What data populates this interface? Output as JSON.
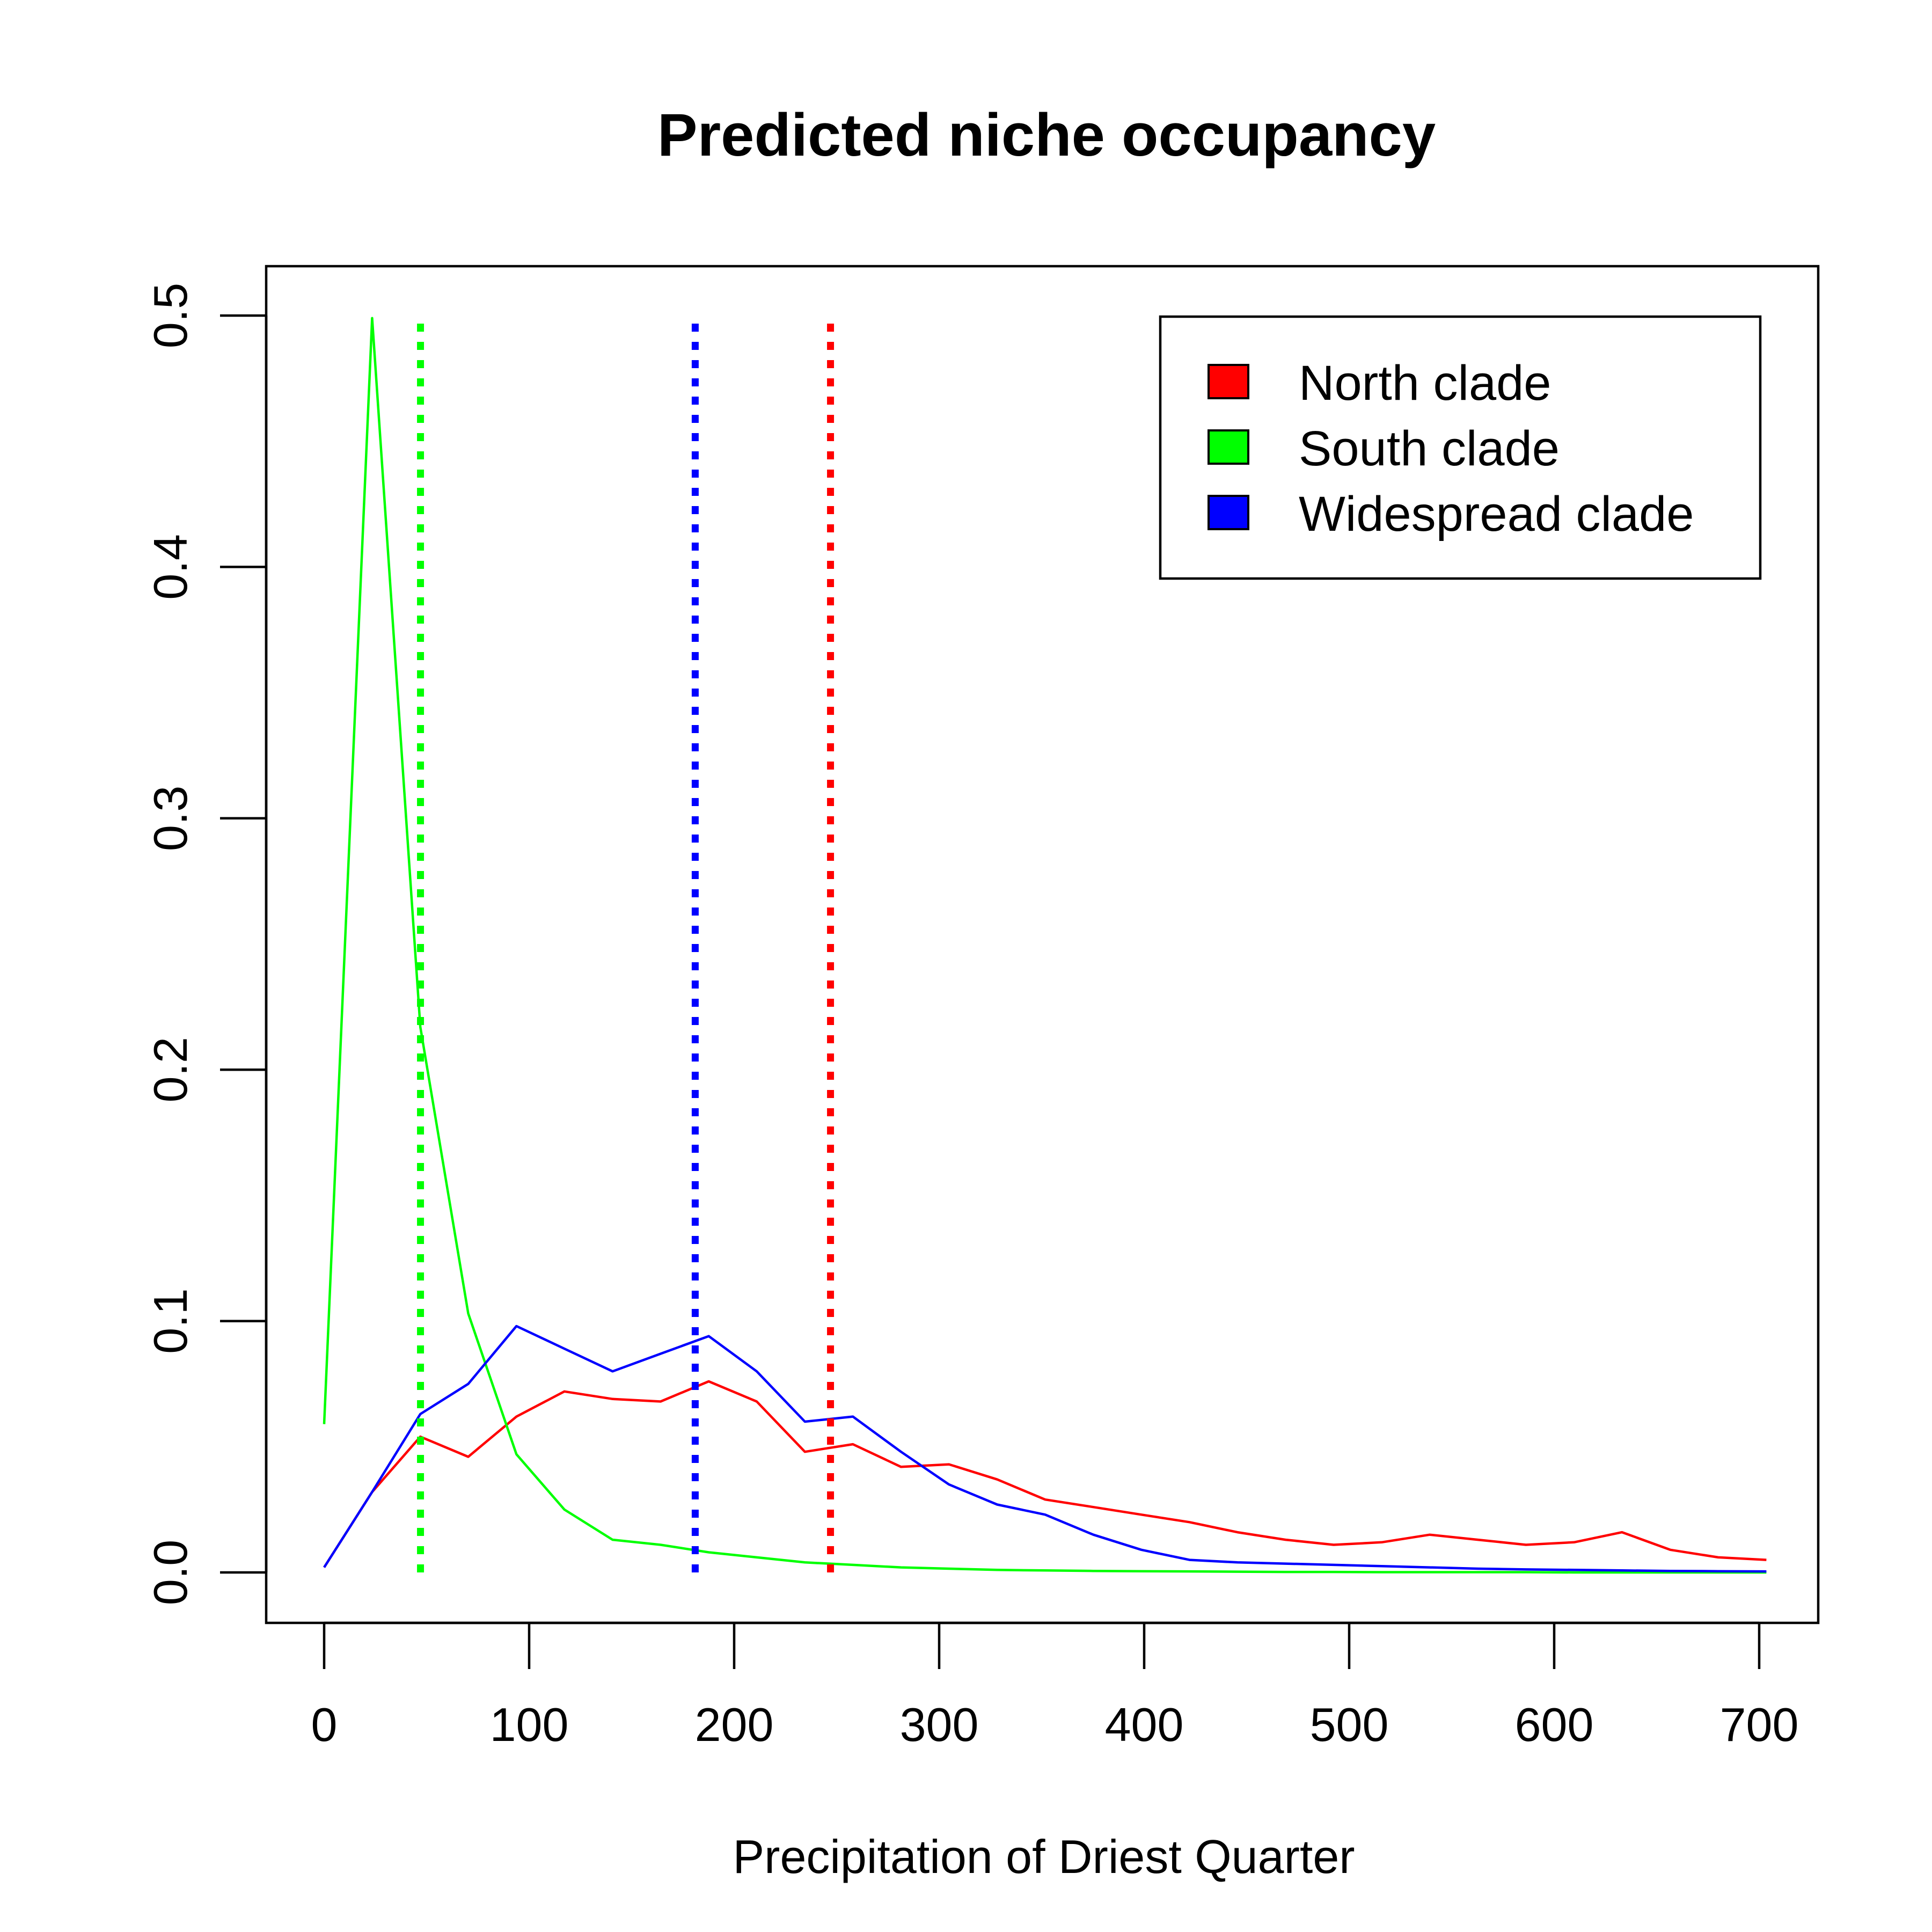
{
  "chart_data": {
    "type": "line",
    "title": "Predicted niche occupancy",
    "xlabel": "Precipitation of Driest Quarter",
    "ylabel": "",
    "xlim": [
      0,
      700
    ],
    "ylim": [
      0,
      0.5
    ],
    "xticks": [
      "0",
      "100",
      "200",
      "300",
      "400",
      "500",
      "600",
      "700"
    ],
    "yticks": [
      "0.0",
      "0.1",
      "0.2",
      "0.3",
      "0.4",
      "0.5"
    ],
    "legend_position": "top-right",
    "legend": [
      {
        "label": "North clade",
        "color": "#ff0000"
      },
      {
        "label": "South clade",
        "color": "#00ff00"
      },
      {
        "label": "Widespread clade",
        "color": "#0000ff"
      }
    ],
    "x": [
      0,
      23.4,
      46.9,
      70.3,
      93.8,
      117.2,
      140.7,
      164.1,
      187.6,
      211.0,
      234.5,
      257.9,
      281.4,
      304.8,
      328.3,
      351.7,
      375.2,
      398.6,
      422.1,
      445.5,
      469.0,
      492.4,
      515.9,
      539.3,
      562.8,
      586.2,
      609.7,
      633.1,
      656.6,
      680.0,
      703.5
    ],
    "series": [
      {
        "name": "North clade",
        "color": "#ff0000",
        "values": [
          0.002,
          0.032,
          0.054,
          0.046,
          0.062,
          0.072,
          0.069,
          0.068,
          0.076,
          0.068,
          0.048,
          0.051,
          0.042,
          0.043,
          0.037,
          0.029,
          0.026,
          0.023,
          0.02,
          0.016,
          0.013,
          0.011,
          0.012,
          0.015,
          0.013,
          0.011,
          0.012,
          0.016,
          0.009,
          0.006,
          0.005
        ]
      },
      {
        "name": "South clade",
        "color": "#00ff00",
        "values": [
          0.059,
          0.499,
          0.217,
          0.103,
          0.047,
          0.025,
          0.013,
          0.011,
          0.008,
          0.006,
          0.004,
          0.003,
          0.002,
          0.0015,
          0.001,
          0.0008,
          0.0006,
          0.0005,
          0.0004,
          0.0003,
          0.0002,
          0.0002,
          0.0001,
          0.0001,
          0.0001,
          0.0001,
          0,
          0,
          0,
          0,
          0
        ]
      },
      {
        "name": "Widespread clade",
        "color": "#0000ff",
        "values": [
          0.002,
          0.032,
          0.063,
          0.075,
          0.098,
          0.089,
          0.08,
          0.087,
          0.094,
          0.08,
          0.06,
          0.062,
          0.048,
          0.035,
          0.027,
          0.023,
          0.015,
          0.009,
          0.005,
          0.004,
          0.0035,
          0.003,
          0.0025,
          0.002,
          0.0015,
          0.0012,
          0.001,
          0.0008,
          0.0006,
          0.0005,
          0.0004
        ]
      }
    ],
    "vlines": [
      {
        "x": 47,
        "color": "#00ff00",
        "ymax": 0.5
      },
      {
        "x": 181,
        "color": "#0000ff",
        "ymax": 0.5
      },
      {
        "x": 247,
        "color": "#ff0000",
        "ymax": 0.5
      }
    ]
  }
}
